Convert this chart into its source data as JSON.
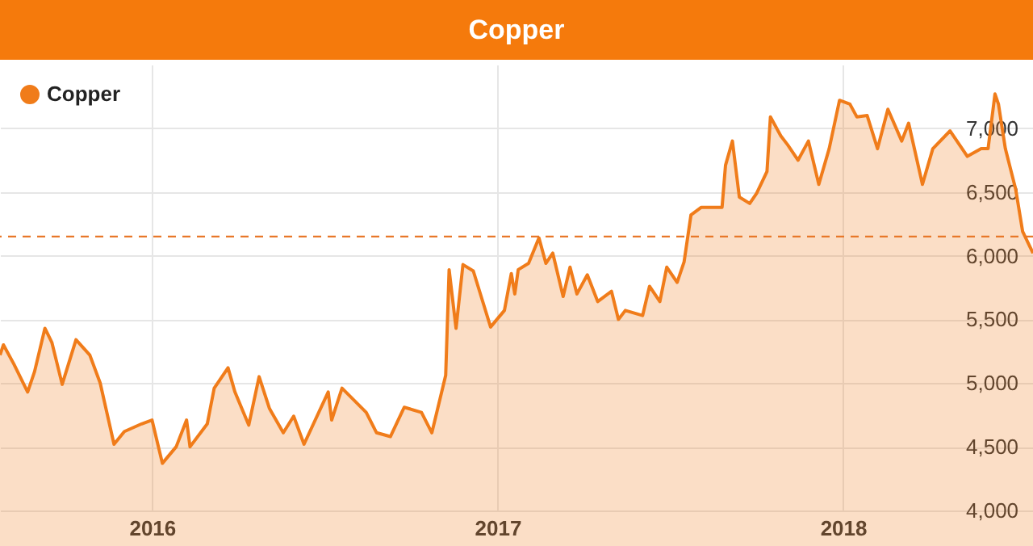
{
  "chart_data": {
    "type": "area",
    "title": "Copper",
    "x": [
      2015.56,
      2015.57,
      2015.6,
      2015.64,
      2015.66,
      2015.69,
      2015.71,
      2015.74,
      2015.78,
      2015.82,
      2015.85,
      2015.89,
      2015.92,
      2015.97,
      2016.0,
      2016.03,
      2016.07,
      2016.1,
      2016.11,
      2016.16,
      2016.18,
      2016.22,
      2016.24,
      2016.28,
      2016.31,
      2016.34,
      2016.38,
      2016.41,
      2016.44,
      2016.51,
      2016.52,
      2016.55,
      2016.62,
      2016.65,
      2016.69,
      2016.73,
      2016.78,
      2016.81,
      2016.85,
      2016.86,
      2016.88,
      2016.9,
      2016.93,
      2016.98,
      2017.02,
      2017.04,
      2017.05,
      2017.06,
      2017.09,
      2017.12,
      2017.14,
      2017.16,
      2017.19,
      2017.21,
      2017.23,
      2017.26,
      2017.29,
      2017.33,
      2017.35,
      2017.37,
      2017.42,
      2017.44,
      2017.47,
      2017.49,
      2017.52,
      2017.54,
      2017.56,
      2017.59,
      2017.65,
      2017.66,
      2017.68,
      2017.7,
      2017.73,
      2017.75,
      2017.78,
      2017.79,
      2017.82,
      2017.84,
      2017.87,
      2017.9,
      2017.93,
      2017.96,
      2017.99,
      2018.02,
      2018.04,
      2018.07,
      2018.1,
      2018.13,
      2018.17,
      2018.19,
      2018.23,
      2018.26,
      2018.31,
      2018.36,
      2018.4,
      2018.42,
      2018.44,
      2018.45,
      2018.47,
      2018.5,
      2018.52,
      2018.55
    ],
    "series": [
      {
        "name": "Copper",
        "color": "#f07c1a",
        "values": [
          5220,
          5300,
          5150,
          4930,
          5090,
          5430,
          5320,
          4990,
          5340,
          5220,
          5000,
          4520,
          4620,
          4680,
          4710,
          4370,
          4500,
          4710,
          4500,
          4680,
          4960,
          5120,
          4930,
          4670,
          5050,
          4800,
          4610,
          4740,
          4520,
          4930,
          4710,
          4960,
          4770,
          4610,
          4580,
          4810,
          4770,
          4610,
          5060,
          5890,
          5430,
          5930,
          5880,
          5440,
          5570,
          5860,
          5700,
          5890,
          5940,
          6140,
          5940,
          6020,
          5680,
          5910,
          5700,
          5850,
          5640,
          5720,
          5500,
          5570,
          5530,
          5760,
          5640,
          5910,
          5790,
          5950,
          6320,
          6380,
          6380,
          6710,
          6900,
          6460,
          6410,
          6490,
          6660,
          7090,
          6940,
          6870,
          6750,
          6900,
          6560,
          6840,
          7220,
          7190,
          7090,
          7100,
          6840,
          7150,
          6900,
          7040,
          6560,
          6840,
          6980,
          6780,
          6840,
          6840,
          7270,
          7190,
          6840,
          6520,
          6190,
          6020
        ]
      }
    ],
    "xlim": [
      2015.56,
      2018.55
    ],
    "xticks": [
      2016,
      2017,
      2018
    ],
    "ylim": [
      4000,
      7500
    ],
    "yticks": [
      {
        "value": 4000,
        "label": "4,000"
      },
      {
        "value": 4500,
        "label": "4,500"
      },
      {
        "value": 5000,
        "label": "5,000"
      },
      {
        "value": 5500,
        "label": "5,500"
      },
      {
        "value": 6000,
        "label": "6,000"
      },
      {
        "value": 6500,
        "label": "6,500"
      },
      {
        "value": 7000,
        "label": "7,000"
      }
    ],
    "ref_lines": [
      {
        "axis": "y",
        "value": 6150,
        "color": "#e8782a",
        "line_style": "dashed"
      }
    ],
    "grid": true,
    "legend": "top left"
  }
}
